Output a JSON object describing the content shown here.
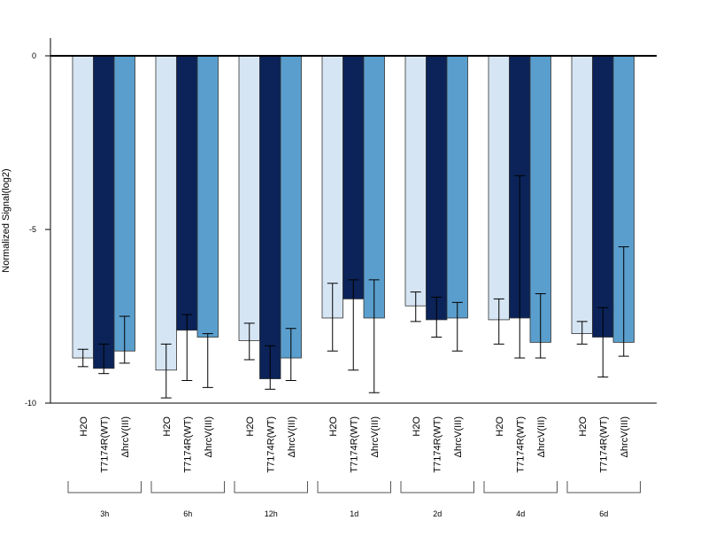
{
  "chart_data": {
    "type": "bar",
    "ylabel": "Normalized Signal(log2)",
    "ylim": [
      -10,
      0.5
    ],
    "yticks": [
      0,
      -5,
      -10
    ],
    "baseline": 0,
    "bar_labels": [
      "H2O",
      "T7174R(WT)",
      "ΔhrcV(III)"
    ],
    "groups": [
      "3h",
      "6h",
      "12h",
      "1d",
      "2d",
      "4d",
      "6d"
    ],
    "series": [
      {
        "name": "H2O",
        "color": "#d6e5f4",
        "values": [
          -8.7,
          -9.05,
          -8.2,
          -7.55,
          -7.2,
          -7.6,
          -8.0
        ],
        "err_low": [
          -8.95,
          -9.85,
          -8.75,
          -8.5,
          -7.65,
          -8.3,
          -8.3
        ],
        "err_high": [
          -8.45,
          -8.3,
          -7.7,
          -6.55,
          -6.8,
          -7.0,
          -7.65
        ]
      },
      {
        "name": "T7174R(WT)",
        "color": "#0b2358",
        "values": [
          -9.0,
          -7.9,
          -9.3,
          -7.0,
          -7.6,
          -7.55,
          -8.1
        ],
        "err_low": [
          -9.15,
          -9.35,
          -9.6,
          -9.05,
          -8.1,
          -8.7,
          -9.25
        ],
        "err_high": [
          -8.3,
          -7.45,
          -8.35,
          -6.45,
          -6.95,
          -3.45,
          -7.25
        ]
      },
      {
        "name": "ΔhrcV(III)",
        "color": "#5a9ecd",
        "values": [
          -8.5,
          -8.1,
          -8.7,
          -7.55,
          -7.55,
          -8.25,
          -8.25
        ],
        "err_low": [
          -8.85,
          -9.55,
          -9.35,
          -9.7,
          -8.5,
          -8.7,
          -8.65
        ],
        "err_high": [
          -7.5,
          -8.0,
          -7.85,
          -6.45,
          -7.1,
          -6.85,
          -5.5
        ]
      }
    ]
  }
}
